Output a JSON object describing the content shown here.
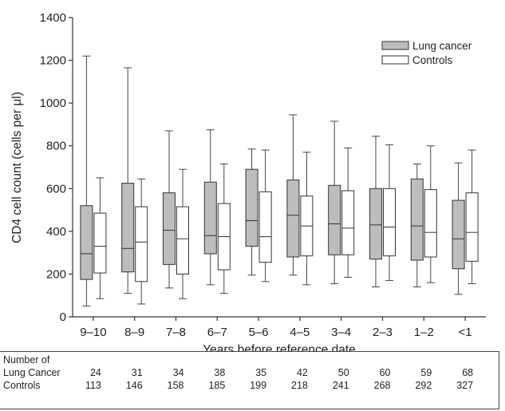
{
  "chart_data": {
    "type": "boxplot",
    "ylabel": "CD4 cell count (cells per μl)",
    "xlabel": "Years before reference date",
    "ylim": [
      0,
      1400
    ],
    "yticks": [
      0,
      200,
      400,
      600,
      800,
      1000,
      1200,
      1400
    ],
    "categories": [
      "9–10",
      "8–9",
      "7–8",
      "6–7",
      "5–6",
      "4–5",
      "3–4",
      "2–3",
      "1–2",
      "<1"
    ],
    "legend_position": "top-right",
    "series": [
      {
        "name": "Lung cancer",
        "color": "#bdbdbd",
        "boxes": [
          {
            "min": 50,
            "q1": 175,
            "median": 295,
            "q3": 520,
            "max": 1220
          },
          {
            "min": 110,
            "q1": 210,
            "median": 320,
            "q3": 625,
            "max": 1165
          },
          {
            "min": 135,
            "q1": 245,
            "median": 405,
            "q3": 580,
            "max": 870
          },
          {
            "min": 150,
            "q1": 295,
            "median": 380,
            "q3": 630,
            "max": 875
          },
          {
            "min": 195,
            "q1": 330,
            "median": 450,
            "q3": 690,
            "max": 785
          },
          {
            "min": 195,
            "q1": 280,
            "median": 475,
            "q3": 640,
            "max": 945
          },
          {
            "min": 155,
            "q1": 290,
            "median": 435,
            "q3": 615,
            "max": 915
          },
          {
            "min": 140,
            "q1": 270,
            "median": 430,
            "q3": 600,
            "max": 845
          },
          {
            "min": 140,
            "q1": 265,
            "median": 425,
            "q3": 645,
            "max": 715
          },
          {
            "min": 105,
            "q1": 225,
            "median": 365,
            "q3": 545,
            "max": 720
          }
        ]
      },
      {
        "name": "Controls",
        "color": "#ffffff",
        "boxes": [
          {
            "min": 85,
            "q1": 205,
            "median": 330,
            "q3": 485,
            "max": 650
          },
          {
            "min": 60,
            "q1": 165,
            "median": 350,
            "q3": 515,
            "max": 645
          },
          {
            "min": 85,
            "q1": 200,
            "median": 365,
            "q3": 515,
            "max": 690
          },
          {
            "min": 110,
            "q1": 220,
            "median": 375,
            "q3": 530,
            "max": 715
          },
          {
            "min": 165,
            "q1": 255,
            "median": 375,
            "q3": 585,
            "max": 780
          },
          {
            "min": 150,
            "q1": 285,
            "median": 425,
            "q3": 565,
            "max": 770
          },
          {
            "min": 185,
            "q1": 290,
            "median": 415,
            "q3": 590,
            "max": 790
          },
          {
            "min": 170,
            "q1": 285,
            "median": 420,
            "q3": 600,
            "max": 805
          },
          {
            "min": 160,
            "q1": 280,
            "median": 395,
            "q3": 595,
            "max": 800
          },
          {
            "min": 155,
            "q1": 260,
            "median": 395,
            "q3": 580,
            "max": 780
          }
        ]
      }
    ]
  },
  "counts_table": {
    "header": "Number of",
    "rows": [
      {
        "label": "Lung Cancer",
        "values": [
          "24",
          "31",
          "34",
          "38",
          "35",
          "42",
          "50",
          "60",
          "59",
          "68"
        ]
      },
      {
        "label": "Controls",
        "values": [
          "113",
          "146",
          "158",
          "185",
          "199",
          "218",
          "241",
          "268",
          "292",
          "327"
        ]
      }
    ]
  }
}
